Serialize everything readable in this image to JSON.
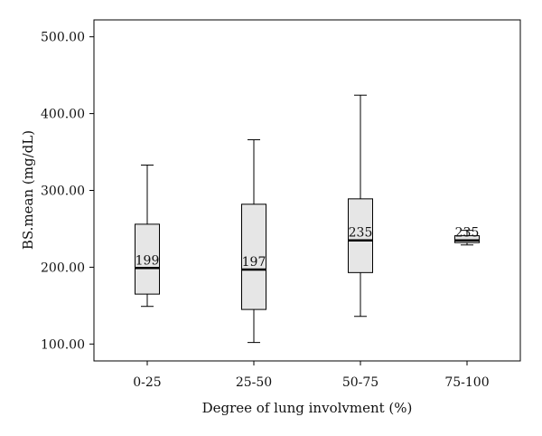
{
  "chart_data": {
    "type": "box",
    "xlabel": "Degree of lung involvment (%)",
    "ylabel": "BS.mean (mg/dL)",
    "ylim": [
      78,
      522
    ],
    "yticks": [
      100,
      200,
      300,
      400,
      500
    ],
    "ytick_labels": [
      "100.00",
      "200.00",
      "300.00",
      "400.00",
      "500.00"
    ],
    "grid": false,
    "box_fill": "#e6e6e6",
    "categories": [
      "0-25",
      "25-50",
      "50-75",
      "75-100"
    ],
    "boxes": [
      {
        "category": "0-25",
        "min": 149,
        "q1": 165,
        "median": 199,
        "q3": 256,
        "max": 333,
        "label": "199"
      },
      {
        "category": "25-50",
        "min": 102,
        "q1": 145,
        "median": 197,
        "q3": 282,
        "max": 366,
        "label": "197"
      },
      {
        "category": "50-75",
        "min": 136,
        "q1": 193,
        "median": 235,
        "q3": 289,
        "max": 424,
        "label": "235"
      },
      {
        "category": "75-100",
        "min": 229,
        "q1": 232,
        "median": 235,
        "q3": 241,
        "max": 248,
        "label": "235"
      }
    ]
  }
}
